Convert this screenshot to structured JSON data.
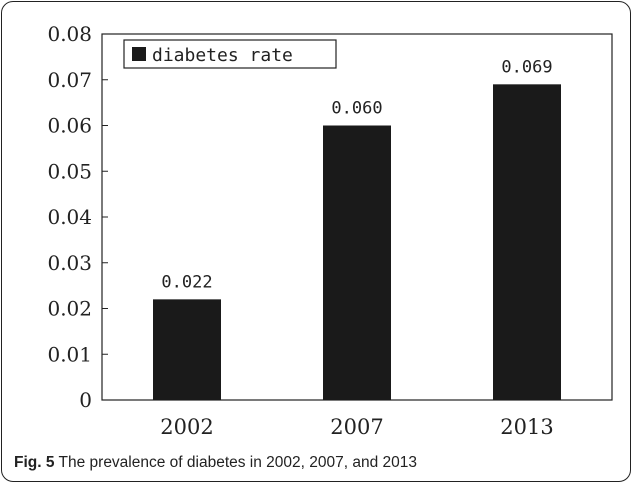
{
  "chart_data": {
    "type": "bar",
    "categories": [
      "2002",
      "2007",
      "2013"
    ],
    "series": [
      {
        "name": "diabetes rate",
        "values": [
          0.022,
          0.06,
          0.069
        ]
      }
    ],
    "data_labels": [
      "0.022",
      "0.060",
      "0.069"
    ],
    "ylim": [
      0,
      0.08
    ],
    "yticks": [
      0,
      0.01,
      0.02,
      0.03,
      0.04,
      0.05,
      0.06,
      0.07,
      0.08
    ],
    "ytick_labels": [
      "0",
      "0.01",
      "0.02",
      "0.03",
      "0.04",
      "0.05",
      "0.06",
      "0.07",
      "0.08"
    ],
    "grid": false,
    "legend": "top-left",
    "bar_color": "#1a1a1a"
  },
  "caption": {
    "label": "Fig. 5",
    "text": "The prevalence of diabetes in 2002, 2007, and 2013"
  }
}
